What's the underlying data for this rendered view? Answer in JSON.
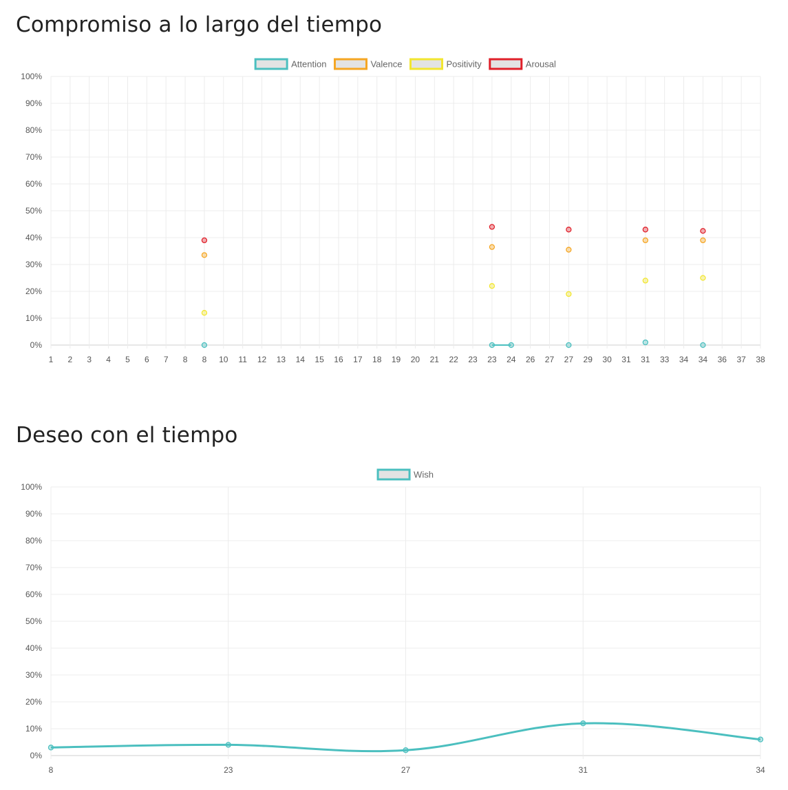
{
  "charts_ui": {
    "title1": "Compromiso a lo largo del tiempo",
    "title2": "Deseo con el tiempo"
  },
  "chart_data": [
    {
      "type": "scatter",
      "title": "Compromiso a lo largo del tiempo",
      "categories": [
        "1",
        "2",
        "3",
        "4",
        "5",
        "6",
        "7",
        "8",
        "8",
        "10",
        "11",
        "12",
        "13",
        "14",
        "15",
        "16",
        "17",
        "18",
        "19",
        "20",
        "21",
        "22",
        "23",
        "23",
        "24",
        "26",
        "27",
        "27",
        "29",
        "30",
        "31",
        "31",
        "33",
        "34",
        "34",
        "36",
        "37",
        "38"
      ],
      "yticks": [
        "0%",
        "10%",
        "20%",
        "30%",
        "40%",
        "50%",
        "60%",
        "70%",
        "80%",
        "90%",
        "100%"
      ],
      "ylim": [
        0,
        100
      ],
      "grid": true,
      "legend_position": "top",
      "series": [
        {
          "name": "Attention",
          "color": "#4bbfbf",
          "points": [
            {
              "i": 8,
              "y": 0
            },
            {
              "i": 23,
              "y": 0
            },
            {
              "i": 24,
              "y": 0
            },
            {
              "i": 27,
              "y": 0
            },
            {
              "i": 31,
              "y": 1
            },
            {
              "i": 34,
              "y": 0
            }
          ],
          "connect": [
            [
              23,
              24
            ]
          ]
        },
        {
          "name": "Valence",
          "color": "#f5a623",
          "points": [
            {
              "i": 8,
              "y": 33.5
            },
            {
              "i": 23,
              "y": 36.5
            },
            {
              "i": 27,
              "y": 35.5
            },
            {
              "i": 31,
              "y": 39
            },
            {
              "i": 34,
              "y": 39
            }
          ]
        },
        {
          "name": "Positivity",
          "color": "#f2e630",
          "points": [
            {
              "i": 8,
              "y": 12
            },
            {
              "i": 23,
              "y": 22
            },
            {
              "i": 27,
              "y": 19
            },
            {
              "i": 31,
              "y": 24
            },
            {
              "i": 34,
              "y": 25
            }
          ]
        },
        {
          "name": "Arousal",
          "color": "#e0202a",
          "points": [
            {
              "i": 8,
              "y": 39
            },
            {
              "i": 23,
              "y": 44
            },
            {
              "i": 27,
              "y": 43
            },
            {
              "i": 31,
              "y": 43
            },
            {
              "i": 34,
              "y": 42.5
            }
          ]
        }
      ]
    },
    {
      "type": "line",
      "title": "Deseo con el tiempo",
      "categories": [
        "8",
        "23",
        "27",
        "31",
        "34"
      ],
      "yticks": [
        "0%",
        "10%",
        "20%",
        "30%",
        "40%",
        "50%",
        "60%",
        "70%",
        "80%",
        "90%",
        "100%"
      ],
      "ylim": [
        0,
        100
      ],
      "grid": true,
      "legend_position": "top",
      "series": [
        {
          "name": "Wish",
          "color": "#4bbfbf",
          "values": [
            3,
            4,
            2,
            12,
            6
          ]
        }
      ]
    }
  ]
}
